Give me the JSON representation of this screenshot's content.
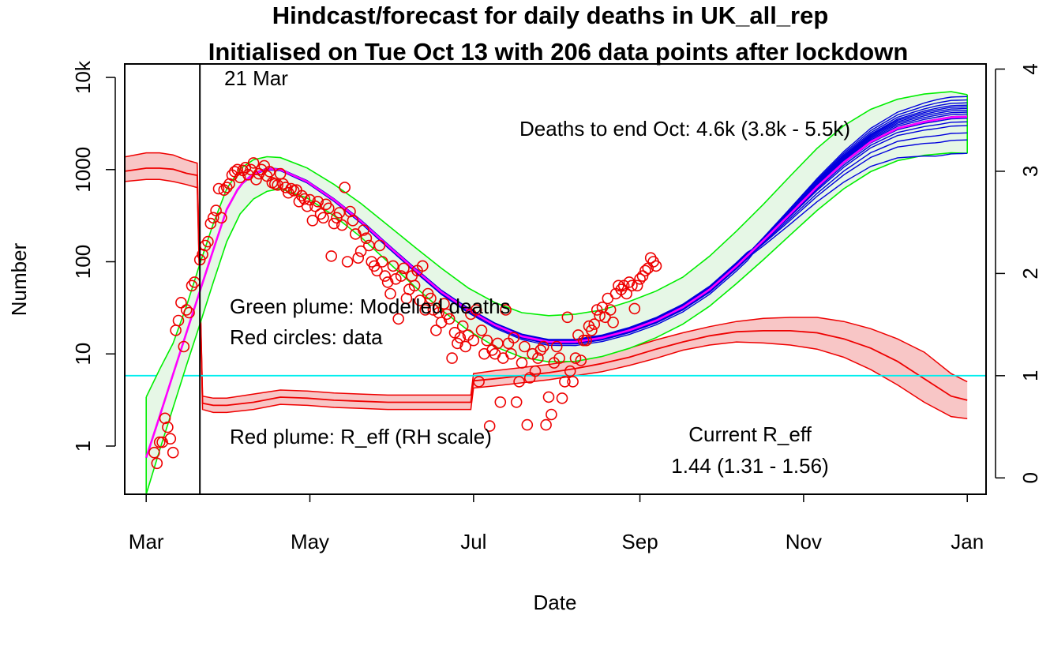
{
  "chart_data": {
    "type": "line",
    "title": "Hindcast/forecast for daily deaths in UK_all_rep",
    "subtitle": "Initialised on Tue Oct 13 with 206 data points after lockdown",
    "xlabel": "Date",
    "ylabel": "Number",
    "y_scale": "log",
    "x_ticks": [
      {
        "label": "Mar",
        "day": 0
      },
      {
        "label": "May",
        "day": 61
      },
      {
        "label": "Jul",
        "day": 122
      },
      {
        "label": "Sep",
        "day": 184
      },
      {
        "label": "Nov",
        "day": 245
      },
      {
        "label": "Jan",
        "day": 306
      }
    ],
    "xlim": [
      -8,
      313
    ],
    "y_ticks": [
      {
        "label": "1",
        "value": 1
      },
      {
        "label": "10",
        "value": 10
      },
      {
        "label": "100",
        "value": 100
      },
      {
        "label": "1000",
        "value": 1000
      },
      {
        "label": "10k",
        "value": 10000
      }
    ],
    "ylim": [
      0.3,
      14000
    ],
    "y2_ticks": [
      {
        "label": "0",
        "value": 0
      },
      {
        "label": "1",
        "value": 1
      },
      {
        "label": "2",
        "value": 2
      },
      {
        "label": "3",
        "value": 3
      },
      {
        "label": "4",
        "value": 4
      }
    ],
    "y2lim": [
      -0.16,
      4.05
    ],
    "lockdown": {
      "day": 20,
      "label": "21 Mar"
    },
    "r_reference_line": 1,
    "annotations": {
      "deaths_to_end": "Deaths to end Oct: 4.6k (3.8k - 5.5k)",
      "green_plume": "Green plume: Modelled deaths",
      "red_circles": "Red circles: data",
      "red_plume": "Red plume: R_eff (RH scale)",
      "current_reff_label": "Current R_eff",
      "current_reff_value": "1.44 (1.31 - 1.56)"
    },
    "colors": {
      "modelled_plume": "#00ee00",
      "modelled_fill": "#e6f7e6",
      "reff_plume": "#ee0000",
      "reff_fill": "#f8c6c6",
      "ensemble": "#0000dd",
      "median": "#ff00ff",
      "data": "#ee0000",
      "reference": "#00eeee"
    },
    "modelled_deaths": {
      "day": [
        0,
        5,
        10,
        15,
        20,
        25,
        30,
        35,
        40,
        45,
        50,
        60,
        70,
        80,
        90,
        100,
        110,
        120,
        130,
        140,
        150,
        160,
        170,
        180,
        190,
        200,
        210,
        220,
        230,
        240,
        250,
        260,
        270,
        280,
        290,
        300,
        306
      ],
      "median": [
        0.75,
        2.1,
        6,
        17,
        48,
        135,
        370,
        680,
        900,
        1020,
        1000,
        740,
        470,
        275,
        150,
        83,
        47,
        30,
        20.5,
        15.5,
        13.5,
        13.5,
        15,
        18,
        23,
        32,
        50,
        90,
        170,
        330,
        650,
        1200,
        2000,
        2800,
        3300,
        3700,
        3750
      ],
      "lower": [
        0.3,
        0.9,
        2.6,
        7.5,
        21,
        60,
        165,
        330,
        480,
        580,
        620,
        490,
        315,
        185,
        100,
        54,
        30,
        18,
        12,
        9.2,
        8.2,
        8.3,
        9.4,
        11.5,
        15,
        21,
        33,
        58,
        105,
        195,
        360,
        620,
        950,
        1250,
        1430,
        1520,
        1500
      ],
      "upper": [
        3.4,
        6.8,
        13,
        33,
        95,
        260,
        620,
        1020,
        1280,
        1380,
        1350,
        1040,
        690,
        430,
        250,
        145,
        85,
        52,
        36,
        28,
        26,
        27,
        30,
        37,
        48,
        68,
        115,
        215,
        420,
        850,
        1700,
        3000,
        4500,
        5800,
        6600,
        7000,
        6500
      ]
    },
    "reff": {
      "day": [
        -8,
        0,
        5,
        10,
        15,
        19,
        21,
        25,
        30,
        40,
        50,
        60,
        70,
        80,
        90,
        100,
        110,
        121,
        122,
        130,
        140,
        150,
        160,
        170,
        180,
        190,
        200,
        210,
        220,
        230,
        240,
        250,
        260,
        270,
        280,
        290,
        300,
        306
      ],
      "median": [
        3.0,
        3.03,
        3.03,
        3.02,
        2.98,
        2.96,
        0.73,
        0.71,
        0.71,
        0.74,
        0.79,
        0.78,
        0.76,
        0.75,
        0.74,
        0.74,
        0.74,
        0.74,
        0.95,
        0.97,
        1.0,
        1.03,
        1.07,
        1.12,
        1.18,
        1.26,
        1.33,
        1.39,
        1.43,
        1.44,
        1.44,
        1.42,
        1.36,
        1.27,
        1.14,
        0.97,
        0.8,
        0.76
      ],
      "lower": [
        2.9,
        2.92,
        2.92,
        2.9,
        2.87,
        2.84,
        0.67,
        0.64,
        0.64,
        0.67,
        0.72,
        0.71,
        0.69,
        0.68,
        0.67,
        0.67,
        0.67,
        0.67,
        0.88,
        0.9,
        0.93,
        0.96,
        1.0,
        1.04,
        1.1,
        1.17,
        1.25,
        1.3,
        1.33,
        1.32,
        1.3,
        1.26,
        1.18,
        1.06,
        0.91,
        0.74,
        0.6,
        0.58
      ],
      "upper": [
        3.14,
        3.18,
        3.18,
        3.16,
        3.11,
        3.08,
        0.8,
        0.78,
        0.78,
        0.82,
        0.86,
        0.85,
        0.83,
        0.82,
        0.81,
        0.81,
        0.81,
        0.81,
        1.02,
        1.05,
        1.08,
        1.11,
        1.15,
        1.2,
        1.27,
        1.35,
        1.42,
        1.48,
        1.53,
        1.56,
        1.57,
        1.57,
        1.53,
        1.46,
        1.36,
        1.23,
        1.02,
        0.94
      ]
    },
    "ensemble_end_values": [
      1500,
      2100,
      2500,
      3000,
      3300,
      3600,
      3800,
      4000,
      4200,
      4400,
      4600,
      4800,
      5000,
      5300,
      5700,
      6200
    ],
    "observed": [
      [
        3,
        0.85
      ],
      [
        4,
        0.65
      ],
      [
        5,
        1.1
      ],
      [
        6,
        1.1
      ],
      [
        7,
        2.0
      ],
      [
        8,
        1.6
      ],
      [
        9,
        1.2
      ],
      [
        10,
        0.85
      ],
      [
        11,
        18
      ],
      [
        12,
        23
      ],
      [
        13,
        36
      ],
      [
        14,
        12
      ],
      [
        15,
        30
      ],
      [
        16,
        28
      ],
      [
        17,
        55
      ],
      [
        18,
        60
      ],
      [
        20,
        105
      ],
      [
        21,
        120
      ],
      [
        22,
        150
      ],
      [
        23,
        165
      ],
      [
        24,
        260
      ],
      [
        25,
        300
      ],
      [
        26,
        360
      ],
      [
        27,
        620
      ],
      [
        28,
        300
      ],
      [
        29,
        600
      ],
      [
        30,
        640
      ],
      [
        31,
        700
      ],
      [
        32,
        870
      ],
      [
        33,
        950
      ],
      [
        34,
        1000
      ],
      [
        35,
        820
      ],
      [
        36,
        980
      ],
      [
        37,
        1050
      ],
      [
        38,
        880
      ],
      [
        39,
        1000
      ],
      [
        40,
        1180
      ],
      [
        41,
        780
      ],
      [
        42,
        900
      ],
      [
        43,
        1000
      ],
      [
        44,
        1100
      ],
      [
        45,
        850
      ],
      [
        46,
        950
      ],
      [
        47,
        720
      ],
      [
        48,
        700
      ],
      [
        49,
        680
      ],
      [
        50,
        900
      ],
      [
        51,
        700
      ],
      [
        52,
        640
      ],
      [
        53,
        560
      ],
      [
        54,
        620
      ],
      [
        55,
        590
      ],
      [
        56,
        600
      ],
      [
        57,
        450
      ],
      [
        58,
        520
      ],
      [
        59,
        480
      ],
      [
        60,
        400
      ],
      [
        61,
        470
      ],
      [
        62,
        280
      ],
      [
        63,
        400
      ],
      [
        64,
        450
      ],
      [
        65,
        330
      ],
      [
        66,
        300
      ],
      [
        67,
        420
      ],
      [
        68,
        380
      ],
      [
        69,
        115
      ],
      [
        70,
        260
      ],
      [
        71,
        300
      ],
      [
        72,
        340
      ],
      [
        73,
        250
      ],
      [
        74,
        640
      ],
      [
        75,
        100
      ],
      [
        76,
        350
      ],
      [
        77,
        280
      ],
      [
        78,
        200
      ],
      [
        79,
        110
      ],
      [
        80,
        130
      ],
      [
        81,
        220
      ],
      [
        82,
        180
      ],
      [
        83,
        150
      ],
      [
        84,
        100
      ],
      [
        85,
        90
      ],
      [
        86,
        80
      ],
      [
        87,
        150
      ],
      [
        88,
        100
      ],
      [
        89,
        70
      ],
      [
        90,
        60
      ],
      [
        91,
        45
      ],
      [
        92,
        90
      ],
      [
        93,
        65
      ],
      [
        94,
        24
      ],
      [
        95,
        70
      ],
      [
        96,
        85
      ],
      [
        97,
        40
      ],
      [
        98,
        50
      ],
      [
        99,
        70
      ],
      [
        100,
        55
      ],
      [
        101,
        80
      ],
      [
        102,
        38
      ],
      [
        103,
        90
      ],
      [
        104,
        30
      ],
      [
        105,
        45
      ],
      [
        106,
        40
      ],
      [
        107,
        30
      ],
      [
        108,
        18
      ],
      [
        109,
        28
      ],
      [
        110,
        22
      ],
      [
        111,
        35
      ],
      [
        112,
        27
      ],
      [
        113,
        24
      ],
      [
        114,
        9
      ],
      [
        115,
        17
      ],
      [
        116,
        13
      ],
      [
        117,
        15
      ],
      [
        118,
        20
      ],
      [
        119,
        12
      ],
      [
        120,
        16
      ],
      [
        121,
        27
      ],
      [
        122,
        14
      ],
      [
        123,
        30
      ],
      [
        124,
        5
      ],
      [
        125,
        18
      ],
      [
        126,
        10
      ],
      [
        127,
        14
      ],
      [
        128,
        1.65
      ],
      [
        129,
        11
      ],
      [
        130,
        10
      ],
      [
        131,
        13
      ],
      [
        132,
        3
      ],
      [
        133,
        9
      ],
      [
        134,
        30
      ],
      [
        135,
        13
      ],
      [
        136,
        10
      ],
      [
        137,
        15
      ],
      [
        138,
        3
      ],
      [
        139,
        5
      ],
      [
        140,
        8
      ],
      [
        141,
        12
      ],
      [
        142,
        1.7
      ],
      [
        143,
        5.5
      ],
      [
        144,
        10
      ],
      [
        145,
        6.5
      ],
      [
        146,
        9
      ],
      [
        147,
        11
      ],
      [
        148,
        12
      ],
      [
        149,
        1.7
      ],
      [
        150,
        3.4
      ],
      [
        151,
        2.2
      ],
      [
        152,
        8
      ],
      [
        153,
        12
      ],
      [
        154,
        9
      ],
      [
        155,
        3.3
      ],
      [
        156,
        5
      ],
      [
        157,
        25
      ],
      [
        158,
        6.5
      ],
      [
        159,
        5
      ],
      [
        160,
        9
      ],
      [
        161,
        16
      ],
      [
        162,
        8.5
      ],
      [
        163,
        14
      ],
      [
        164,
        14
      ],
      [
        165,
        20
      ],
      [
        166,
        18
      ],
      [
        167,
        21
      ],
      [
        168,
        30
      ],
      [
        169,
        26
      ],
      [
        170,
        32
      ],
      [
        171,
        25
      ],
      [
        172,
        40
      ],
      [
        173,
        30
      ],
      [
        174,
        22
      ],
      [
        175,
        45
      ],
      [
        176,
        55
      ],
      [
        177,
        50
      ],
      [
        178,
        55
      ],
      [
        179,
        45
      ],
      [
        180,
        60
      ],
      [
        181,
        55
      ],
      [
        182,
        31
      ],
      [
        183,
        55
      ],
      [
        184,
        65
      ],
      [
        185,
        70
      ],
      [
        186,
        80
      ],
      [
        187,
        85
      ],
      [
        188,
        110
      ],
      [
        189,
        100
      ],
      [
        190,
        90
      ]
    ]
  }
}
